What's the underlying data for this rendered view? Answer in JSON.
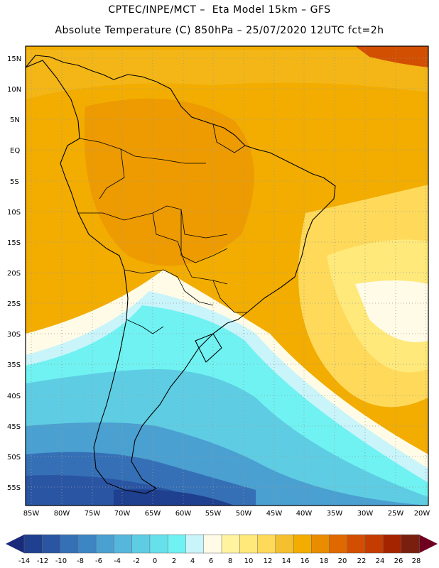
{
  "header": {
    "line1": "CPTEC/INPE/MCT –  Eta Model 15km – GFS",
    "line2": "Absolute Temperature (C) 850hPa – 25/07/2020 12UTC fct=2h"
  },
  "map": {
    "lat_labels": [
      "15N",
      "10N",
      "5N",
      "EQ",
      "5S",
      "10S",
      "15S",
      "20S",
      "25S",
      "30S",
      "35S",
      "40S",
      "45S",
      "50S",
      "55S"
    ],
    "lon_labels": [
      "85W",
      "80W",
      "75W",
      "70W",
      "65W",
      "60W",
      "55W",
      "50W",
      "45W",
      "40W",
      "35W",
      "30W",
      "25W",
      "20W"
    ],
    "region": "South America"
  },
  "legend": {
    "labels": [
      "-14",
      "-12",
      "-10",
      "-8",
      "-6",
      "-4",
      "-2",
      "0",
      "2",
      "4",
      "6",
      "8",
      "10",
      "12",
      "14",
      "16",
      "18",
      "20",
      "22",
      "24",
      "26",
      "28"
    ],
    "colors": [
      "#1f3f8f",
      "#2a55a3",
      "#3570b6",
      "#3d86c4",
      "#4aa0d0",
      "#56b7dc",
      "#5ecde3",
      "#66e0eb",
      "#70f2f2",
      "#c8f4fa",
      "#fffbe6",
      "#fff3a0",
      "#ffe97a",
      "#ffd95a",
      "#f5c030",
      "#f2ad00",
      "#e98c00",
      "#e06800",
      "#d24e00",
      "#c43c00",
      "#a52400",
      "#7a1f10"
    ],
    "low_arrow_color": "#1a2a7a",
    "high_arrow_color": "#6e0020"
  }
}
